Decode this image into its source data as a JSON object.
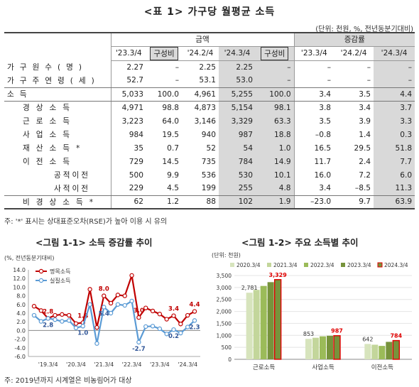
{
  "table1": {
    "title": "<표 1> 가구당 월평균 소득",
    "unit": "(단위: 천원, %, 전년동분기대비)",
    "header": {
      "group_amount": "금액",
      "group_rate": "증감률",
      "amount_cols": [
        "'23.3/4",
        "구성비",
        "'24.2/4",
        "'24.3/4",
        "구성비"
      ],
      "rate_cols": [
        "'23.3/4",
        "'24.2/4",
        "'24.3/4"
      ]
    },
    "rows": [
      {
        "label": "가구원수(명)",
        "cells": [
          "2.27",
          "–",
          "2.25",
          "2.25",
          "–",
          "–",
          "–",
          "–"
        ]
      },
      {
        "label": "가구주연령(세)",
        "cells": [
          "52.7",
          "–",
          "53.1",
          "53.0",
          "–",
          "–",
          "–",
          "–"
        ]
      },
      {
        "label": "소득",
        "cells": [
          "5,033",
          "100.0",
          "4,961",
          "5,255",
          "100.0",
          "3.4",
          "3.5",
          "4.4"
        ]
      },
      {
        "label": "경상소득",
        "cells": [
          "4,971",
          "98.8",
          "4,873",
          "5,154",
          "98.1",
          "3.8",
          "3.4",
          "3.7"
        ]
      },
      {
        "label": "근로소득",
        "cells": [
          "3,223",
          "64.0",
          "3,146",
          "3,329",
          "63.3",
          "3.5",
          "3.9",
          "3.3"
        ]
      },
      {
        "label": "사업소득",
        "cells": [
          "984",
          "19.5",
          "940",
          "987",
          "18.8",
          "–0.8",
          "1.4",
          "0.3"
        ]
      },
      {
        "label": "재산소득*",
        "cells": [
          "35",
          "0.7",
          "52",
          "54",
          "1.0",
          "16.5",
          "29.5",
          "51.8"
        ]
      },
      {
        "label": "이전소득",
        "cells": [
          "729",
          "14.5",
          "735",
          "784",
          "14.9",
          "11.7",
          "2.4",
          "7.7"
        ]
      },
      {
        "label": "공적이전",
        "cells": [
          "500",
          "9.9",
          "536",
          "530",
          "10.1",
          "16.0",
          "7.2",
          "6.0"
        ]
      },
      {
        "label": "사적이전",
        "cells": [
          "229",
          "4.5",
          "199",
          "255",
          "4.8",
          "3.4",
          "–8.5",
          "11.3"
        ]
      },
      {
        "label": "비경상소득*",
        "cells": [
          "62",
          "1.2",
          "88",
          "102",
          "1.9",
          "–23.0",
          "9.7",
          "63.9"
        ]
      }
    ],
    "note": "주: '*' 표시는 상대표준오차(RSE)가 높아 이용 시 유의"
  },
  "chart_data": [
    {
      "type": "line",
      "title": "<그림 1-1> 소득 증감률 추이",
      "ylabel": "(%, 전년동분기대비)",
      "ylim": [
        -6.0,
        14.0
      ],
      "yticks": [
        "14.0",
        "12.0",
        "10.0",
        "8.0",
        "6.0",
        "4.0",
        "2.0",
        "0.0",
        "-2.0",
        "-4.0",
        "-6.0"
      ],
      "xticks": [
        "'19.3/4",
        "'20.3/4",
        "'21.3/4",
        "'22.3/4",
        "'23.3/4",
        "'24.3/4"
      ],
      "series": [
        {
          "name": "명목소득",
          "color": "#c00000",
          "values": [
            5.6,
            4.6,
            2.8,
            3.5,
            3.7,
            3.5,
            1.6,
            1.8,
            9.5,
            0.7,
            8.0,
            6.3,
            8.2,
            8.0,
            12.7,
            3.0,
            5.2,
            4.5,
            3.8,
            2.6,
            3.4,
            1.5,
            3.5,
            4.4
          ],
          "labels": {
            "2": "2.8",
            "7": "1.8",
            "10": "8.0",
            "15": "3.0",
            "20": "3.4",
            "23": "4.4"
          }
        },
        {
          "name": "실질소득",
          "color": "#5b9bd5",
          "values": [
            3.5,
            2.1,
            2.8,
            2.5,
            2.1,
            2.3,
            0.6,
            1.0,
            6.0,
            -3.0,
            5.4,
            4.0,
            6.0,
            5.8,
            6.8,
            -2.7,
            0.9,
            1.0,
            0.4,
            -0.8,
            0.2,
            -0.6,
            0.8,
            2.3
          ],
          "labels": {
            "2": "2.8",
            "7": "1.0",
            "10": "5.4",
            "15": "-2.7",
            "20": "0.2",
            "23": "2.3"
          }
        }
      ]
    },
    {
      "type": "bar",
      "title": "<그림 1-2> 주요 소득별 추이",
      "ylabel": "(단위: 천원)",
      "ylim": [
        0,
        3500
      ],
      "yticks": [
        "3,500",
        "3,000",
        "2,500",
        "2,000",
        "1,500",
        "1,000",
        "500",
        "0"
      ],
      "categories": [
        "근로소득",
        "사업소득",
        "이전소득"
      ],
      "series": [
        {
          "name": "2020.3/4",
          "color": "#d7e4bd",
          "values": [
            2781,
            853,
            642
          ]
        },
        {
          "name": "2021.3/4",
          "color": "#c3d69b",
          "values": [
            2900,
            900,
            610
          ]
        },
        {
          "name": "2022.3/4",
          "color": "#9bbb59",
          "values": [
            3065,
            960,
            560
          ]
        },
        {
          "name": "2023.3/4",
          "color": "#77933c",
          "values": [
            3223,
            984,
            729
          ]
        },
        {
          "name": "2024.3/4",
          "color": "#77933c",
          "outline": "#e00000",
          "values": [
            3329,
            987,
            784
          ]
        }
      ],
      "data_labels": [
        {
          "series": 0,
          "cat": 0,
          "text": "2,781"
        },
        {
          "series": 4,
          "cat": 0,
          "text": "3,329"
        },
        {
          "series": 0,
          "cat": 1,
          "text": "853"
        },
        {
          "series": 4,
          "cat": 1,
          "text": "987"
        },
        {
          "series": 0,
          "cat": 2,
          "text": "642"
        },
        {
          "series": 4,
          "cat": 2,
          "text": "784"
        }
      ]
    }
  ],
  "footnote": "주: 2019년까지 시계열은 비농림어가 대상"
}
